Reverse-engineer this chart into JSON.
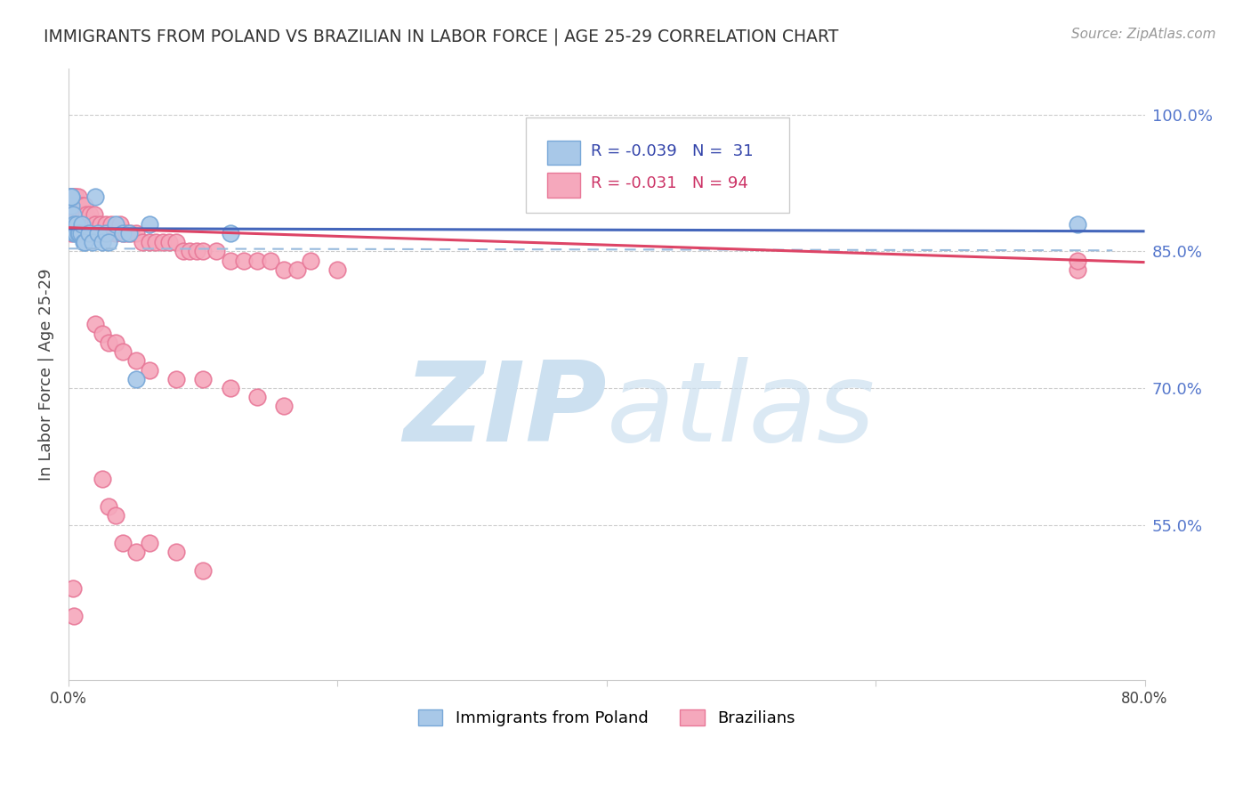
{
  "title": "IMMIGRANTS FROM POLAND VS BRAZILIAN IN LABOR FORCE | AGE 25-29 CORRELATION CHART",
  "source": "Source: ZipAtlas.com",
  "ylabel": "In Labor Force | Age 25-29",
  "xlim": [
    0.0,
    0.8
  ],
  "ylim": [
    0.38,
    1.05
  ],
  "yticks": [
    0.55,
    0.7,
    0.85,
    1.0
  ],
  "ytick_labels": [
    "55.0%",
    "70.0%",
    "85.0%",
    "100.0%"
  ],
  "xticks": [
    0.0,
    0.2,
    0.4,
    0.6,
    0.8
  ],
  "xtick_labels": [
    "0.0%",
    "",
    "",
    "",
    "80.0%"
  ],
  "poland_color": "#a8c8e8",
  "brazil_color": "#f5a8bc",
  "poland_edge": "#78a8d8",
  "brazil_edge": "#e87898",
  "poland_line_color": "#4466bb",
  "brazil_line_color": "#dd4466",
  "dashed_line_color": "#99bbdd",
  "legend_R_poland": "R = -0.039",
  "legend_N_poland": "N =  31",
  "legend_R_brazil": "R = -0.031",
  "legend_N_brazil": "N = 94",
  "poland_x": [
    0.001,
    0.001,
    0.002,
    0.002,
    0.002,
    0.003,
    0.003,
    0.004,
    0.004,
    0.005,
    0.006,
    0.007,
    0.008,
    0.009,
    0.01,
    0.011,
    0.012,
    0.015,
    0.018,
    0.02,
    0.022,
    0.025,
    0.028,
    0.03,
    0.035,
    0.04,
    0.045,
    0.05,
    0.06,
    0.12,
    0.75
  ],
  "poland_y": [
    0.91,
    0.91,
    0.9,
    0.91,
    0.91,
    0.88,
    0.89,
    0.87,
    0.88,
    0.87,
    0.88,
    0.87,
    0.87,
    0.87,
    0.88,
    0.86,
    0.86,
    0.87,
    0.86,
    0.91,
    0.87,
    0.86,
    0.87,
    0.86,
    0.88,
    0.87,
    0.87,
    0.71,
    0.88,
    0.87,
    0.88
  ],
  "brazil_x": [
    0.001,
    0.001,
    0.001,
    0.002,
    0.002,
    0.002,
    0.002,
    0.002,
    0.003,
    0.003,
    0.003,
    0.003,
    0.004,
    0.004,
    0.004,
    0.005,
    0.005,
    0.005,
    0.006,
    0.006,
    0.007,
    0.007,
    0.008,
    0.008,
    0.009,
    0.009,
    0.01,
    0.01,
    0.011,
    0.012,
    0.012,
    0.013,
    0.014,
    0.015,
    0.016,
    0.017,
    0.018,
    0.019,
    0.02,
    0.022,
    0.024,
    0.026,
    0.028,
    0.03,
    0.032,
    0.035,
    0.038,
    0.04,
    0.043,
    0.046,
    0.05,
    0.055,
    0.06,
    0.065,
    0.07,
    0.075,
    0.08,
    0.085,
    0.09,
    0.095,
    0.1,
    0.11,
    0.12,
    0.13,
    0.14,
    0.15,
    0.16,
    0.17,
    0.18,
    0.2,
    0.02,
    0.025,
    0.03,
    0.035,
    0.04,
    0.05,
    0.06,
    0.08,
    0.1,
    0.12,
    0.14,
    0.16,
    0.025,
    0.03,
    0.035,
    0.04,
    0.05,
    0.06,
    0.08,
    0.1,
    0.75,
    0.75,
    0.003,
    0.004
  ],
  "brazil_y": [
    0.91,
    0.9,
    0.88,
    0.91,
    0.9,
    0.89,
    0.88,
    0.87,
    0.91,
    0.9,
    0.89,
    0.88,
    0.91,
    0.9,
    0.89,
    0.91,
    0.9,
    0.88,
    0.9,
    0.89,
    0.91,
    0.9,
    0.89,
    0.88,
    0.9,
    0.89,
    0.9,
    0.88,
    0.89,
    0.9,
    0.88,
    0.89,
    0.88,
    0.88,
    0.89,
    0.88,
    0.88,
    0.89,
    0.88,
    0.87,
    0.88,
    0.87,
    0.88,
    0.87,
    0.88,
    0.87,
    0.88,
    0.87,
    0.87,
    0.87,
    0.87,
    0.86,
    0.86,
    0.86,
    0.86,
    0.86,
    0.86,
    0.85,
    0.85,
    0.85,
    0.85,
    0.85,
    0.84,
    0.84,
    0.84,
    0.84,
    0.83,
    0.83,
    0.84,
    0.83,
    0.77,
    0.76,
    0.75,
    0.75,
    0.74,
    0.73,
    0.72,
    0.71,
    0.71,
    0.7,
    0.69,
    0.68,
    0.6,
    0.57,
    0.56,
    0.53,
    0.52,
    0.53,
    0.52,
    0.5,
    0.83,
    0.84,
    0.48,
    0.45
  ],
  "background_color": "#ffffff",
  "watermark_color": "#cce0f0",
  "watermark_zip": "ZIP",
  "watermark_atlas": "atlas"
}
